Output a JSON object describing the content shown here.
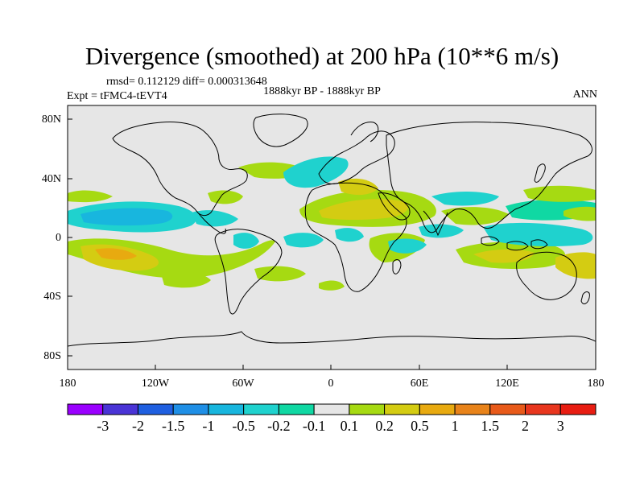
{
  "map": {
    "title": "Divergence (smoothed) at 200 hPa (10**6 m/s)",
    "stats": "rmsd= 0.112129 diff= 0.000313648",
    "expt": "Expt = tFMC4-tEVT4",
    "period": "1888kyr BP - 1888kyr BP",
    "season": "ANN",
    "lat_ticks": [
      "80N",
      "40N",
      "0",
      "40S",
      "80S"
    ],
    "lon_ticks": [
      "180",
      "120W",
      "60W",
      "0",
      "60E",
      "120E",
      "180"
    ]
  },
  "colorbar": {
    "labels": [
      "-3",
      "-2",
      "-1.5",
      "-1",
      "-0.5",
      "-0.2",
      "-0.1",
      "0.1",
      "0.2",
      "0.5",
      "1",
      "1.5",
      "2",
      "3"
    ],
    "colors": [
      "#9a00ff",
      "#4a34d6",
      "#1f5fe0",
      "#1f8fe6",
      "#18b6de",
      "#1fd2ce",
      "#10d8a3",
      "#e6e6e6",
      "#a6da12",
      "#d4cc12",
      "#e8aa10",
      "#e8831a",
      "#e85a1a",
      "#e8361e",
      "#e81d12"
    ]
  },
  "palette": {
    "ocean": "#e6e6e6",
    "green": "#a6da12",
    "yellow": "#d4cc12",
    "orange": "#e8aa10",
    "cyan": "#1fd2ce",
    "teal": "#10d8a3",
    "blue": "#18b6de"
  }
}
